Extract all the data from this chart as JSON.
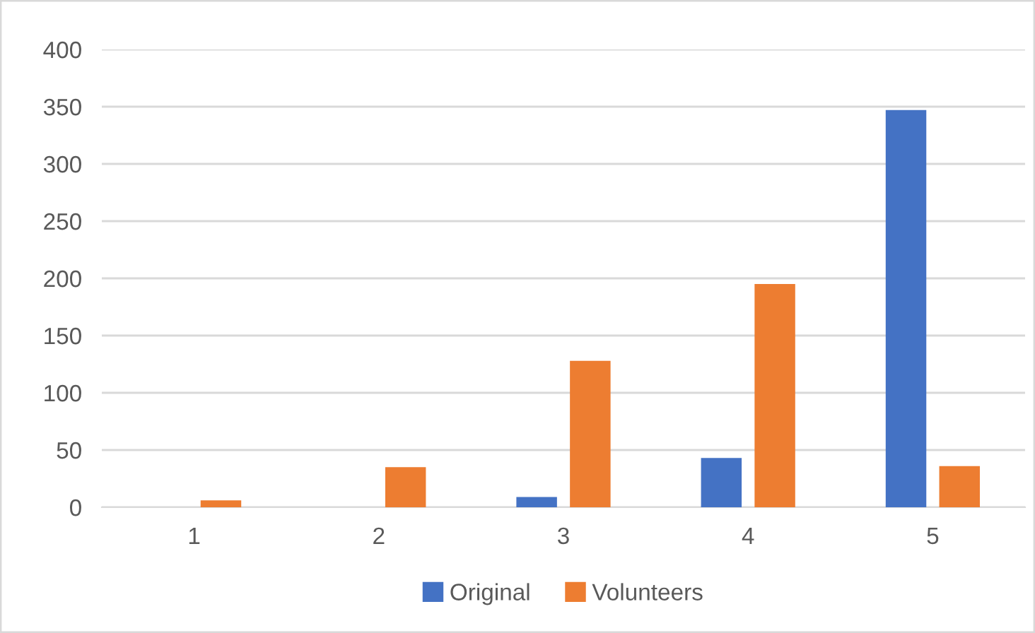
{
  "chart_data": {
    "type": "bar",
    "categories": [
      "1",
      "2",
      "3",
      "4",
      "5"
    ],
    "series": [
      {
        "name": "Original",
        "color": "#4472c4",
        "values": [
          0,
          0,
          9,
          43,
          347
        ]
      },
      {
        "name": "Volunteers",
        "color": "#ed7d31",
        "values": [
          6,
          35,
          128,
          195,
          36
        ]
      }
    ],
    "ylim": [
      0,
      400
    ],
    "yticks": [
      0,
      50,
      100,
      150,
      200,
      250,
      300,
      350,
      400
    ],
    "grid": "y",
    "legend": "bottom"
  }
}
